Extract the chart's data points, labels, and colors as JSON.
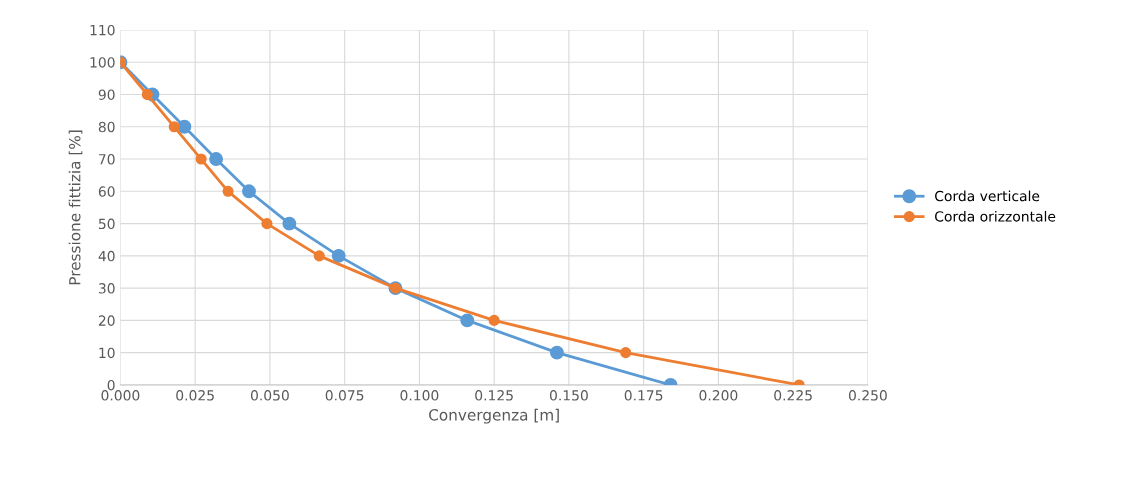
{
  "chart_data": {
    "type": "line",
    "xlabel": "Convergenza [m]",
    "ylabel": "Pressione fittizia [%]",
    "series": [
      {
        "name": "Corda verticale",
        "color": "#5b9bd5",
        "x": [
          0.0,
          0.0107,
          0.0214,
          0.032,
          0.043,
          0.0565,
          0.073,
          0.092,
          0.116,
          0.146,
          0.184
        ],
        "values": [
          100,
          90,
          80,
          70,
          60,
          50,
          40,
          30,
          20,
          10,
          0
        ]
      },
      {
        "name": "Corda orizzontale",
        "color": "#ed7d31",
        "x": [
          0.0,
          0.009,
          0.018,
          0.027,
          0.036,
          0.049,
          0.0665,
          0.092,
          0.125,
          0.169,
          0.227
        ],
        "values": [
          100,
          90,
          80,
          70,
          60,
          50,
          40,
          30,
          20,
          10,
          0
        ]
      }
    ],
    "xlim": [
      0,
      0.25
    ],
    "xticks": [
      {
        "value": 0,
        "label": "0.000"
      },
      {
        "value": 0.025,
        "label": "0.025"
      },
      {
        "value": 0.05,
        "label": "0.050"
      },
      {
        "value": 0.075,
        "label": "0.075"
      },
      {
        "value": 0.1,
        "label": "0.100"
      },
      {
        "value": 0.125,
        "label": "0.125"
      },
      {
        "value": 0.15,
        "label": "0.150"
      },
      {
        "value": 0.175,
        "label": "0.175"
      },
      {
        "value": 0.2,
        "label": "0.200"
      },
      {
        "value": 0.225,
        "label": "0.225"
      },
      {
        "value": 0.25,
        "label": "0.250"
      }
    ],
    "ylim": [
      0,
      110
    ],
    "yticks": [
      0,
      10,
      20,
      30,
      40,
      50,
      60,
      70,
      80,
      90,
      100,
      110
    ],
    "grid": true,
    "legend": "right",
    "marker": "circle",
    "line_style": "solid"
  }
}
